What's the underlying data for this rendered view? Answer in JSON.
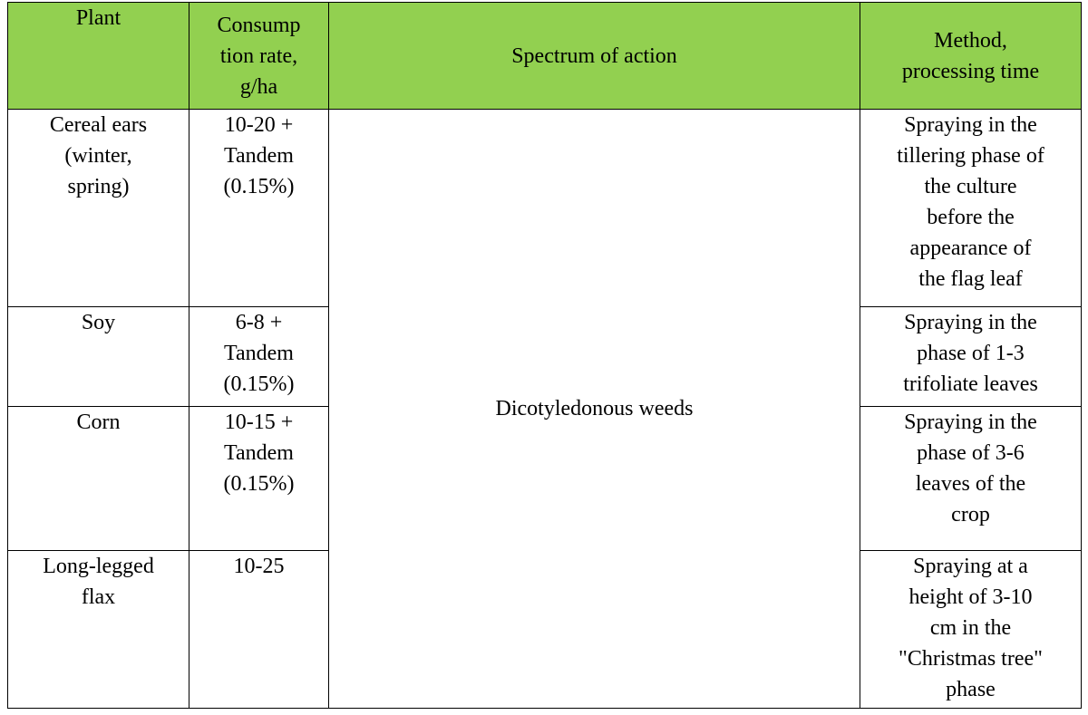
{
  "table": {
    "header": [
      [
        "Plant"
      ],
      [
        "Consump",
        "tion rate,",
        "g/ha"
      ],
      [
        "Spectrum of action"
      ],
      [
        "Method,",
        "processing time"
      ]
    ],
    "spectrum": [
      "Dicotyledonous weeds"
    ],
    "rows": [
      {
        "plant": [
          "Cereal ears",
          "(winter,",
          "spring)"
        ],
        "rate": [
          "10-20 +",
          "Tandem",
          "(0.15%)"
        ],
        "method": [
          "Spraying in the",
          "tillering phase of",
          "the culture",
          "before the",
          "appearance of",
          "the flag leaf"
        ]
      },
      {
        "plant": [
          "Soy"
        ],
        "rate": [
          "6-8 +",
          "Tandem",
          "(0.15%)"
        ],
        "method": [
          "Spraying in the",
          "phase of 1-3",
          "trifoliate leaves"
        ]
      },
      {
        "plant": [
          "Corn"
        ],
        "rate": [
          "10-15 +",
          "Tandem",
          "(0.15%)"
        ],
        "method": [
          "Spraying in the",
          "phase of 3-6",
          "leaves of the",
          "crop"
        ]
      },
      {
        "plant": [
          "Long-legged",
          "flax"
        ],
        "rate": [
          "10-25"
        ],
        "method": [
          "Spraying at a",
          "height of 3-10",
          "cm in the",
          "\"Christmas tree\"",
          "phase"
        ]
      }
    ]
  }
}
